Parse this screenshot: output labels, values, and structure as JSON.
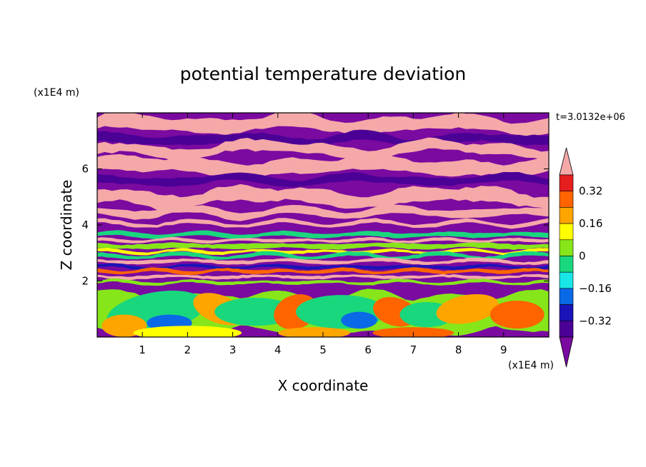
{
  "chart_data": {
    "type": "heatmap",
    "title": "potential temperature deviation",
    "xlabel": "X coordinate",
    "ylabel": "Z coordinate",
    "x_unit": "(x1E4 m)",
    "y_unit": "(x1E4 m)",
    "time_label": "t=3.0132e+06",
    "xlim": [
      0,
      10
    ],
    "ylim": [
      0,
      8
    ],
    "x_ticks": [
      "1",
      "2",
      "3",
      "4",
      "5",
      "6",
      "7",
      "8",
      "9"
    ],
    "y_ticks": [
      "2",
      "4",
      "6"
    ],
    "colorbar": {
      "levels": [
        -0.48,
        -0.4,
        -0.32,
        -0.24,
        -0.16,
        -0.08,
        0,
        0.08,
        0.16,
        0.24,
        0.32,
        0.4
      ],
      "tick_labels": [
        "0.32",
        "0.16",
        "0",
        "−0.16",
        "−0.32"
      ],
      "colors": [
        "#7a0aa0",
        "#4b0096",
        "#1a13b7",
        "#0a69e6",
        "#19e6e6",
        "#19d77d",
        "#86e61a",
        "#ffff00",
        "#ffa500",
        "#ff6400",
        "#e61e1e",
        "#f5a8a8"
      ],
      "extend": "both"
    },
    "field_description_layers": [
      {
        "z_range": [
          4.5,
          8.0
        ],
        "pattern": "alternating bands",
        "values": [
          0.45,
          -0.45
        ]
      },
      {
        "z_range": [
          2.0,
          4.5
        ],
        "pattern": "thin turbulent layers",
        "values": [
          0.45,
          -0.45,
          -0.12,
          0.0,
          0.2,
          -0.4
        ]
      },
      {
        "z_range": [
          0.0,
          2.0
        ],
        "pattern": "eddies",
        "values": [
          -0.05,
          -0.12,
          0.1,
          0.2,
          -0.25,
          0.3
        ]
      }
    ]
  }
}
